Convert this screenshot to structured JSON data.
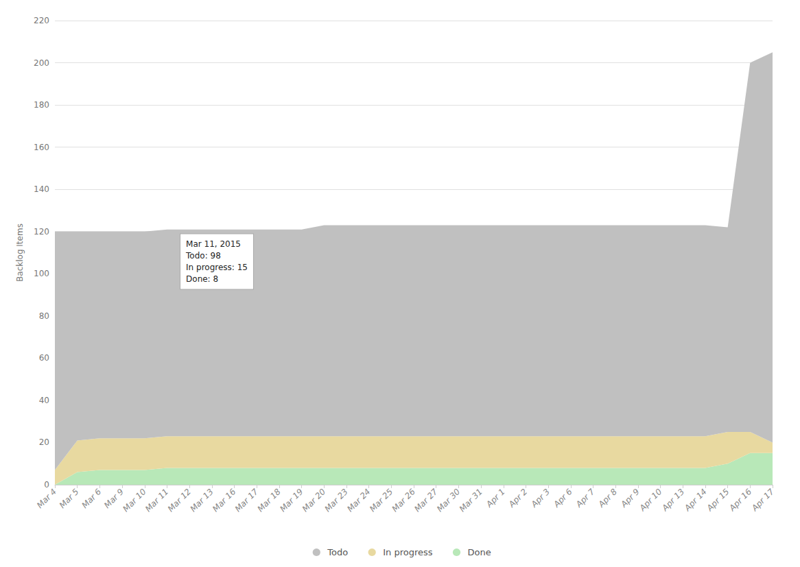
{
  "chart_data": {
    "type": "stacked_area",
    "categories": [
      "Mar 4",
      "Mar 5",
      "Mar 6",
      "Mar 9",
      "Mar 10",
      "Mar 11",
      "Mar 12",
      "Mar 13",
      "Mar 16",
      "Mar 17",
      "Mar 18",
      "Mar 19",
      "Mar 20",
      "Mar 23",
      "Mar 24",
      "Mar 25",
      "Mar 26",
      "Mar 27",
      "Mar 30",
      "Mar 31",
      "Apr 1",
      "Apr 2",
      "Apr 3",
      "Apr 6",
      "Apr 7",
      "Apr 8",
      "Apr 9",
      "Apr 10",
      "Apr 13",
      "Apr 14",
      "Apr 15",
      "Apr 16",
      "Apr 17"
    ],
    "series": [
      {
        "name": "Done",
        "color": "#b8e8b8",
        "values": [
          0,
          6,
          7,
          7,
          7,
          8,
          8,
          8,
          8,
          8,
          8,
          8,
          8,
          8,
          8,
          8,
          8,
          8,
          8,
          8,
          8,
          8,
          8,
          8,
          8,
          8,
          8,
          8,
          8,
          8,
          10,
          15,
          15
        ]
      },
      {
        "name": "In progress",
        "color": "#e8d9a0",
        "values": [
          7,
          15,
          15,
          15,
          15,
          15,
          15,
          15,
          15,
          15,
          15,
          15,
          15,
          15,
          15,
          15,
          15,
          15,
          15,
          15,
          15,
          15,
          15,
          15,
          15,
          15,
          15,
          15,
          15,
          15,
          15,
          10,
          5
        ]
      },
      {
        "name": "Todo",
        "color": "#c0c0c0",
        "values": [
          113,
          99,
          98,
          98,
          98,
          98,
          98,
          98,
          98,
          98,
          98,
          98,
          100,
          100,
          100,
          100,
          100,
          100,
          100,
          100,
          100,
          100,
          100,
          100,
          100,
          100,
          100,
          100,
          100,
          100,
          97,
          175,
          185
        ]
      }
    ],
    "stacked": true,
    "ylabel": "Backlog Items",
    "ylim": [
      0,
      220
    ],
    "yticks": [
      0,
      20,
      40,
      60,
      80,
      100,
      120,
      140,
      160,
      180,
      200,
      220
    ],
    "grid": true,
    "legend": "bottom",
    "annotations": [
      {
        "text": "Mar 11, 2015\nTodo: 98\nIn progress: 15\nDone: 8",
        "x": "Mar 11"
      }
    ]
  }
}
